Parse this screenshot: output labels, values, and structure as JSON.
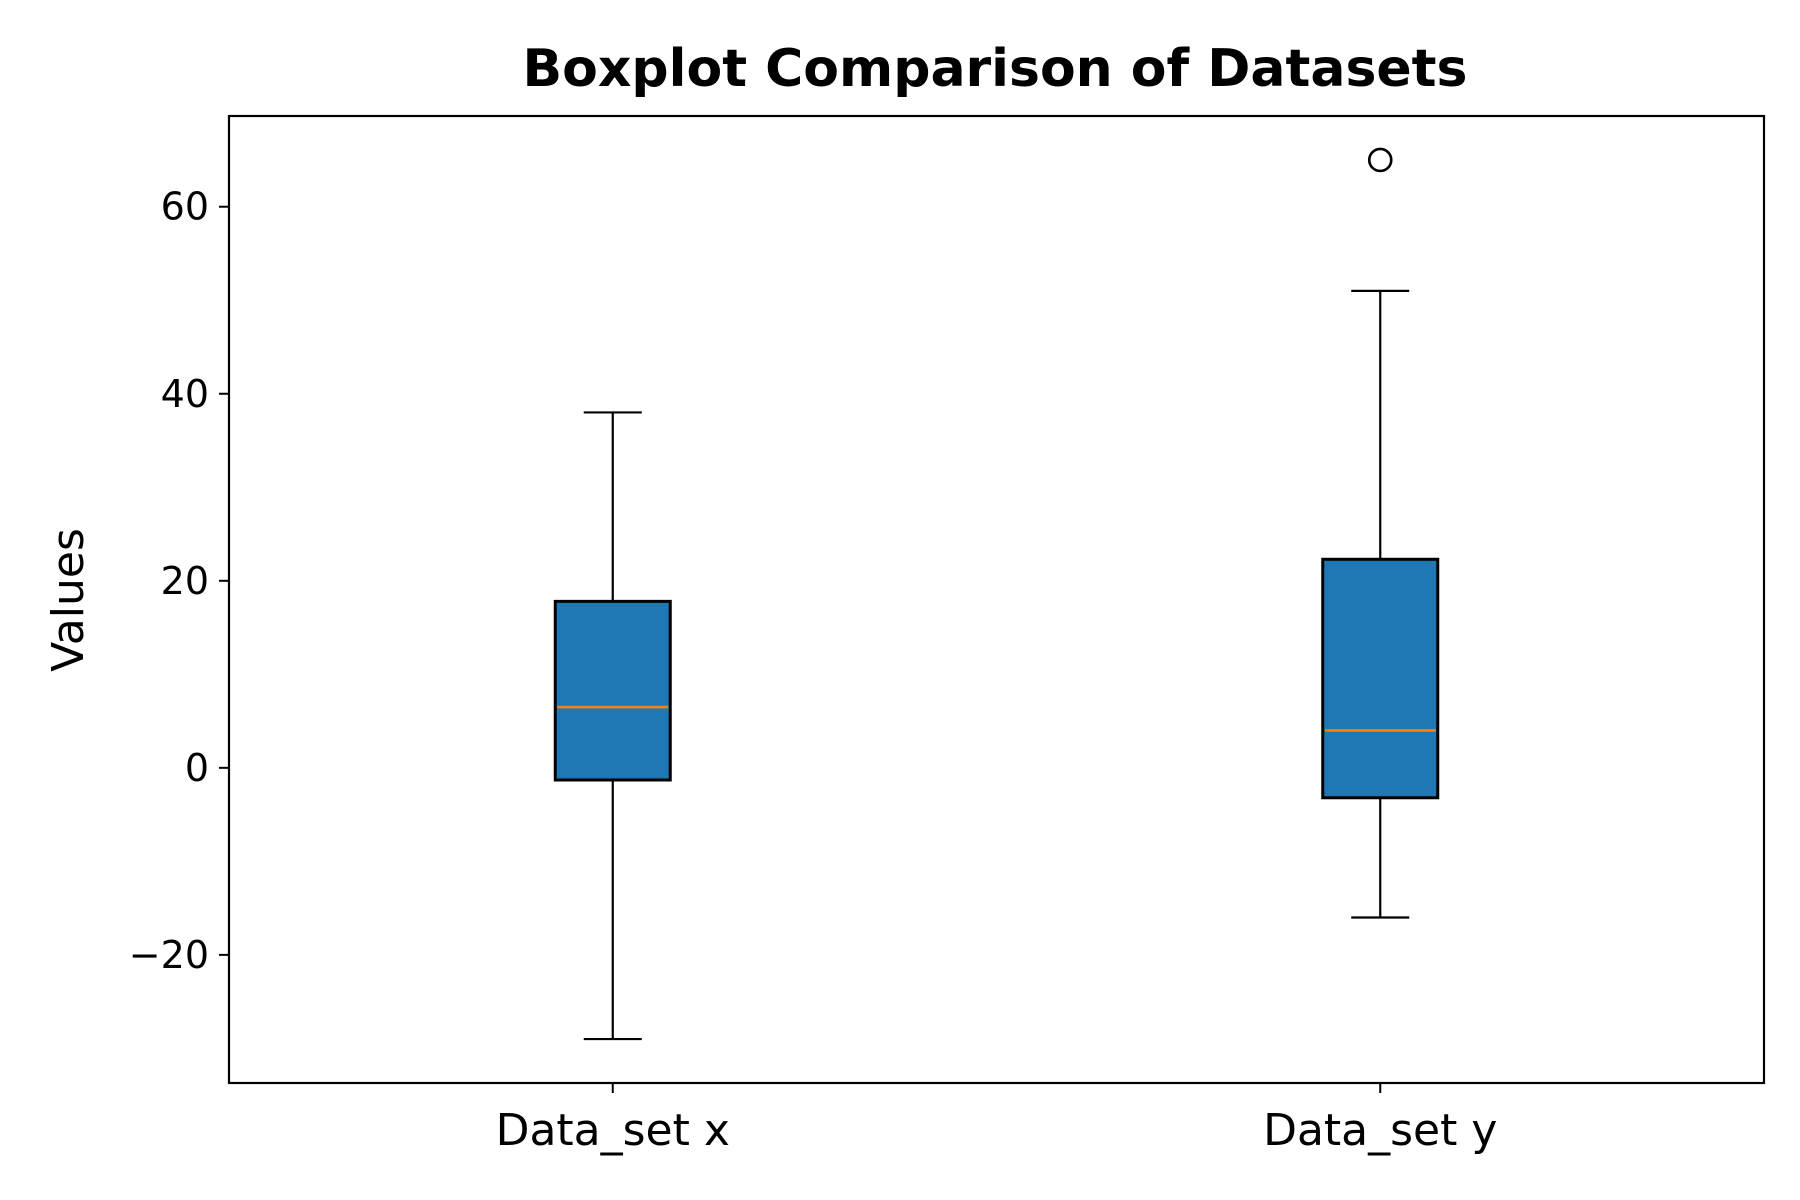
{
  "chart_data": {
    "type": "box",
    "title": "Boxplot Comparison of Datasets",
    "xlabel": "",
    "ylabel": "Values",
    "ylim": [
      -33.7,
      69.7
    ],
    "yticks": [
      -20,
      0,
      20,
      40,
      60
    ],
    "ytick_labels": [
      "−20",
      "0",
      "20",
      "40",
      "60"
    ],
    "grid": false,
    "categories": [
      "Data_set x",
      "Data_set y"
    ],
    "boxes": [
      {
        "name": "Data_set x",
        "whisker_low": -29,
        "q1": -1.3,
        "median": 6.5,
        "q3": 17.8,
        "whisker_high": 38,
        "outliers": []
      },
      {
        "name": "Data_set y",
        "whisker_low": -16,
        "q1": -3.2,
        "median": 4.0,
        "q3": 22.3,
        "whisker_high": 51,
        "outliers": [
          65
        ]
      }
    ],
    "colors": {
      "box_fill": "#1f77b4",
      "median": "#ff7f0e",
      "edge": "#000000"
    }
  }
}
